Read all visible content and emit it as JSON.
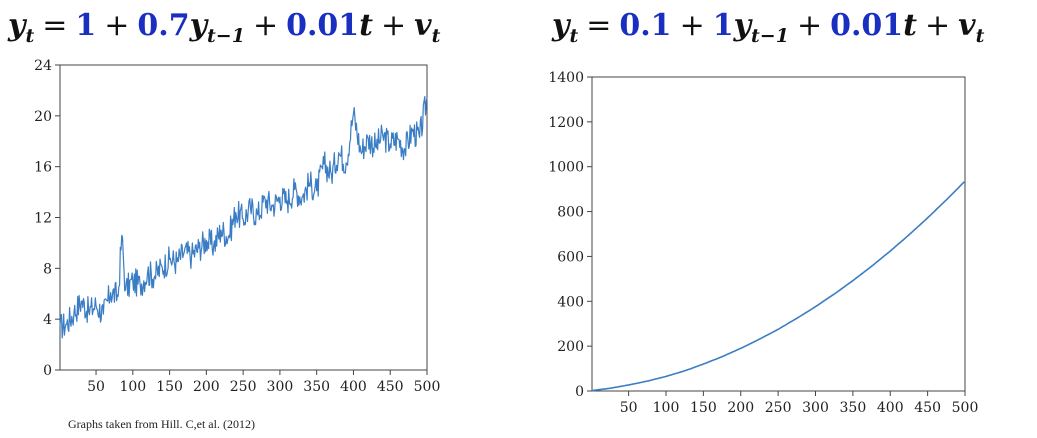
{
  "equations": {
    "left": {
      "lhs_var": "y",
      "lhs_sub": "t",
      "eq": "=",
      "c1": "1",
      "plus1": "+",
      "c2": "0.7",
      "var2": "y",
      "sub2": "t−1",
      "plus2": "+",
      "c3": "0.01",
      "var3": "t",
      "plus3": "+",
      "var4": "v",
      "sub4": "t"
    },
    "right": {
      "lhs_var": "y",
      "lhs_sub": "t",
      "eq": "=",
      "c1": "0.1",
      "plus1": "+",
      "c2": "1",
      "var2": "y",
      "sub2": "t−1",
      "plus2": "+",
      "c3": "0.01",
      "var3": "t",
      "plus3": "+",
      "var4": "v",
      "sub4": "t"
    }
  },
  "credit": "Graphs taken from Hill. C,et al. (2012)",
  "colors": {
    "line": "#3b7dc4",
    "coef": "#1a2fc0",
    "axis": "#444444"
  },
  "chart_data": [
    {
      "type": "line",
      "title": "",
      "xlabel": "",
      "ylabel": "",
      "xlim": [
        1,
        500
      ],
      "ylim": [
        0,
        24
      ],
      "x_ticks": [
        50,
        100,
        150,
        200,
        250,
        300,
        350,
        400,
        450,
        500
      ],
      "y_ticks": [
        0,
        4,
        8,
        12,
        16,
        20,
        24
      ],
      "grid": false,
      "series": [
        {
          "x": [
            1,
            10,
            20,
            30,
            40,
            50,
            60,
            70,
            80,
            85,
            90,
            100,
            110,
            120,
            130,
            140,
            150,
            160,
            170,
            180,
            190,
            200,
            210,
            220,
            230,
            240,
            250,
            260,
            270,
            280,
            290,
            300,
            310,
            320,
            330,
            340,
            350,
            360,
            370,
            380,
            390,
            400,
            410,
            420,
            430,
            440,
            450,
            460,
            470,
            480,
            490,
            500
          ],
          "values": [
            3.4,
            3.6,
            4.5,
            5.4,
            4.6,
            5.1,
            4.4,
            6.1,
            5.8,
            10.6,
            6.3,
            7.0,
            6.7,
            7.6,
            7.4,
            8.1,
            8.7,
            8.5,
            9.3,
            9.0,
            9.6,
            10.2,
            9.8,
            11.0,
            10.5,
            12.4,
            11.9,
            12.7,
            12.2,
            13.4,
            12.9,
            13.6,
            13.3,
            14.2,
            13.6,
            14.7,
            14.1,
            16.2,
            15.4,
            17.1,
            16.3,
            20.2,
            17.2,
            18.2,
            17.6,
            18.4,
            17.8,
            18.2,
            17.4,
            18.8,
            18.3,
            21.4
          ]
        }
      ]
    },
    {
      "type": "line",
      "title": "",
      "xlabel": "",
      "ylabel": "",
      "xlim": [
        1,
        500
      ],
      "ylim": [
        0,
        1400
      ],
      "x_ticks": [
        50,
        100,
        150,
        200,
        250,
        300,
        350,
        400,
        450,
        500
      ],
      "y_ticks": [
        0,
        200,
        400,
        600,
        800,
        1000,
        1200,
        1400
      ],
      "grid": false,
      "series": [
        {
          "x": [
            1,
            25,
            50,
            75,
            100,
            125,
            150,
            175,
            200,
            225,
            250,
            275,
            300,
            325,
            350,
            375,
            400,
            425,
            450,
            475,
            500
          ],
          "values": [
            2,
            12,
            27,
            44,
            65,
            90,
            120,
            153,
            190,
            231,
            275,
            324,
            376,
            432,
            492,
            556,
            624,
            696,
            772,
            852,
            936
          ]
        }
      ]
    }
  ]
}
